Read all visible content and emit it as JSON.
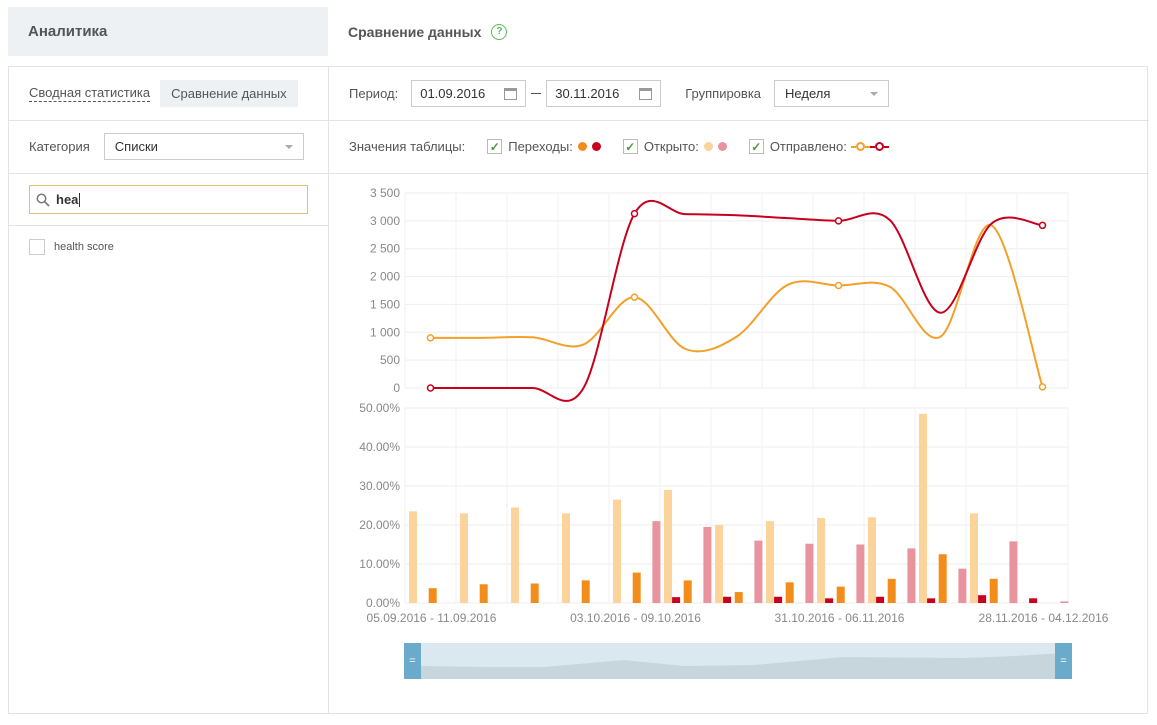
{
  "header": {
    "section_title": "Аналитика",
    "page_title": "Сравнение данных",
    "help_glyph": "?"
  },
  "sidebar": {
    "tabs": [
      "Сводная статистика",
      "Сравнение данных"
    ],
    "category_label": "Категория",
    "category_value": "Списки",
    "search_value": "hea",
    "items": [
      {
        "label": "health score",
        "checked": false
      }
    ]
  },
  "filters": {
    "period_label": "Период:",
    "date_from": "01.09.2016",
    "date_to": "30.11.2016",
    "grouping_label": "Группировка",
    "grouping_value": "Неделя",
    "table_values_label": "Значения таблицы:",
    "legend": [
      {
        "label": "Переходы:",
        "checked": true,
        "colors": [
          "#f28c1b",
          "#c8001e"
        ]
      },
      {
        "label": "Открыто:",
        "checked": true,
        "colors": [
          "#fbd49c",
          "#e8939e"
        ]
      },
      {
        "label": "Отправлено:",
        "checked": true,
        "colors": [
          "#f3a02a",
          "#c8001e"
        ]
      }
    ]
  },
  "chart_data": [
    {
      "type": "line",
      "x": [
        0,
        1,
        2,
        3,
        4,
        5,
        6,
        7,
        8,
        9,
        10,
        11,
        12
      ],
      "ylim": [
        0,
        3500
      ],
      "yticks": [
        "3 500",
        "3 000",
        "2 500",
        "2 000",
        "1 500",
        "1 000",
        "500",
        "0"
      ],
      "ytick_values": [
        3500,
        3000,
        2500,
        2000,
        1500,
        1000,
        500,
        0
      ],
      "grid": true,
      "series": [
        {
          "color": "#f3a02a",
          "values": [
            900,
            900,
            910,
            780,
            1630,
            700,
            920,
            1850,
            1840,
            1820,
            920,
            2920,
            20
          ]
        },
        {
          "color": "#c8001e",
          "values": [
            0,
            0,
            0,
            0,
            3130,
            3120,
            3100,
            3050,
            3000,
            3020,
            1350,
            2950,
            2920
          ]
        }
      ],
      "markers": [
        0,
        4,
        8,
        12
      ]
    },
    {
      "type": "bar",
      "categories": [
        "05.09.2016 - 11.09.2016",
        "",
        "",
        "",
        "03.10.2016 - 09.10.2016",
        "",
        "",
        "",
        "31.10.2016 - 06.11.2016",
        "",
        "",
        "",
        "28.11.2016 - 04.12.2016"
      ],
      "ylim": [
        0,
        50
      ],
      "yticks": [
        "50.00%",
        "40.00%",
        "30.00%",
        "20.00%",
        "10.00%",
        "0.00%"
      ],
      "ytick_values": [
        50,
        40,
        30,
        20,
        10,
        0
      ],
      "grid": true,
      "series": [
        {
          "color": "#fbd49c",
          "values": [
            23.5,
            23,
            24.5,
            23,
            26.5,
            29,
            20,
            21,
            21.8,
            22,
            48.5,
            23,
            0
          ]
        },
        {
          "color": "#f28c1b",
          "values": [
            3.8,
            4.8,
            5,
            5.8,
            7.8,
            5.8,
            2.8,
            5.3,
            4.2,
            6.2,
            12.5,
            6.2,
            0
          ]
        },
        {
          "color": "#e8939e",
          "values": [
            0,
            0,
            0,
            0,
            21,
            19.5,
            16,
            15.2,
            15,
            14,
            8.8,
            15.8,
            0.4
          ]
        },
        {
          "color": "#c8001e",
          "values": [
            0,
            0,
            0,
            0,
            1.5,
            1.6,
            1.6,
            1.2,
            1.6,
            1.2,
            2,
            1.2,
            0
          ]
        }
      ]
    }
  ]
}
